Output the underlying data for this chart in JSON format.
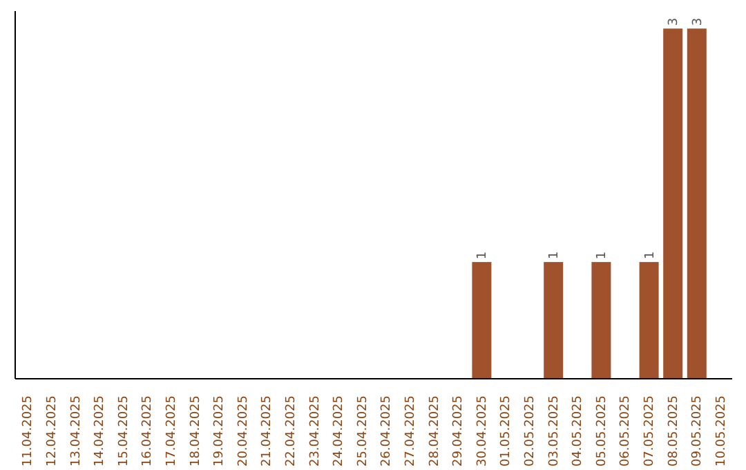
{
  "chart_data": {
    "type": "bar",
    "categories": [
      "11.04.2025",
      "12.04.2025",
      "13.04.2025",
      "14.04.2025",
      "15.04.2025",
      "16.04.2025",
      "17.04.2025",
      "18.04.2025",
      "19.04.2025",
      "20.04.2025",
      "21.04.2025",
      "22.04.2025",
      "23.04.2025",
      "24.04.2025",
      "25.04.2025",
      "26.04.2025",
      "27.04.2025",
      "28.04.2025",
      "29.04.2025",
      "30.04.2025",
      "01.05.2025",
      "02.05.2025",
      "03.05.2025",
      "04.05.2025",
      "05.05.2025",
      "06.05.2025",
      "07.05.2025",
      "08.05.2025",
      "09.05.2025",
      "10.05.2025"
    ],
    "values": [
      null,
      null,
      null,
      null,
      null,
      null,
      null,
      null,
      null,
      null,
      null,
      null,
      null,
      null,
      null,
      null,
      null,
      null,
      null,
      1,
      null,
      null,
      1,
      null,
      1,
      null,
      1,
      3,
      3,
      null
    ],
    "value_labels": [
      null,
      null,
      null,
      null,
      null,
      null,
      null,
      null,
      null,
      null,
      null,
      null,
      null,
      null,
      null,
      null,
      null,
      null,
      null,
      "1",
      null,
      null,
      "1",
      null,
      "1",
      null,
      "1",
      "3",
      "3",
      null
    ],
    "color": "#a0522d"
  }
}
